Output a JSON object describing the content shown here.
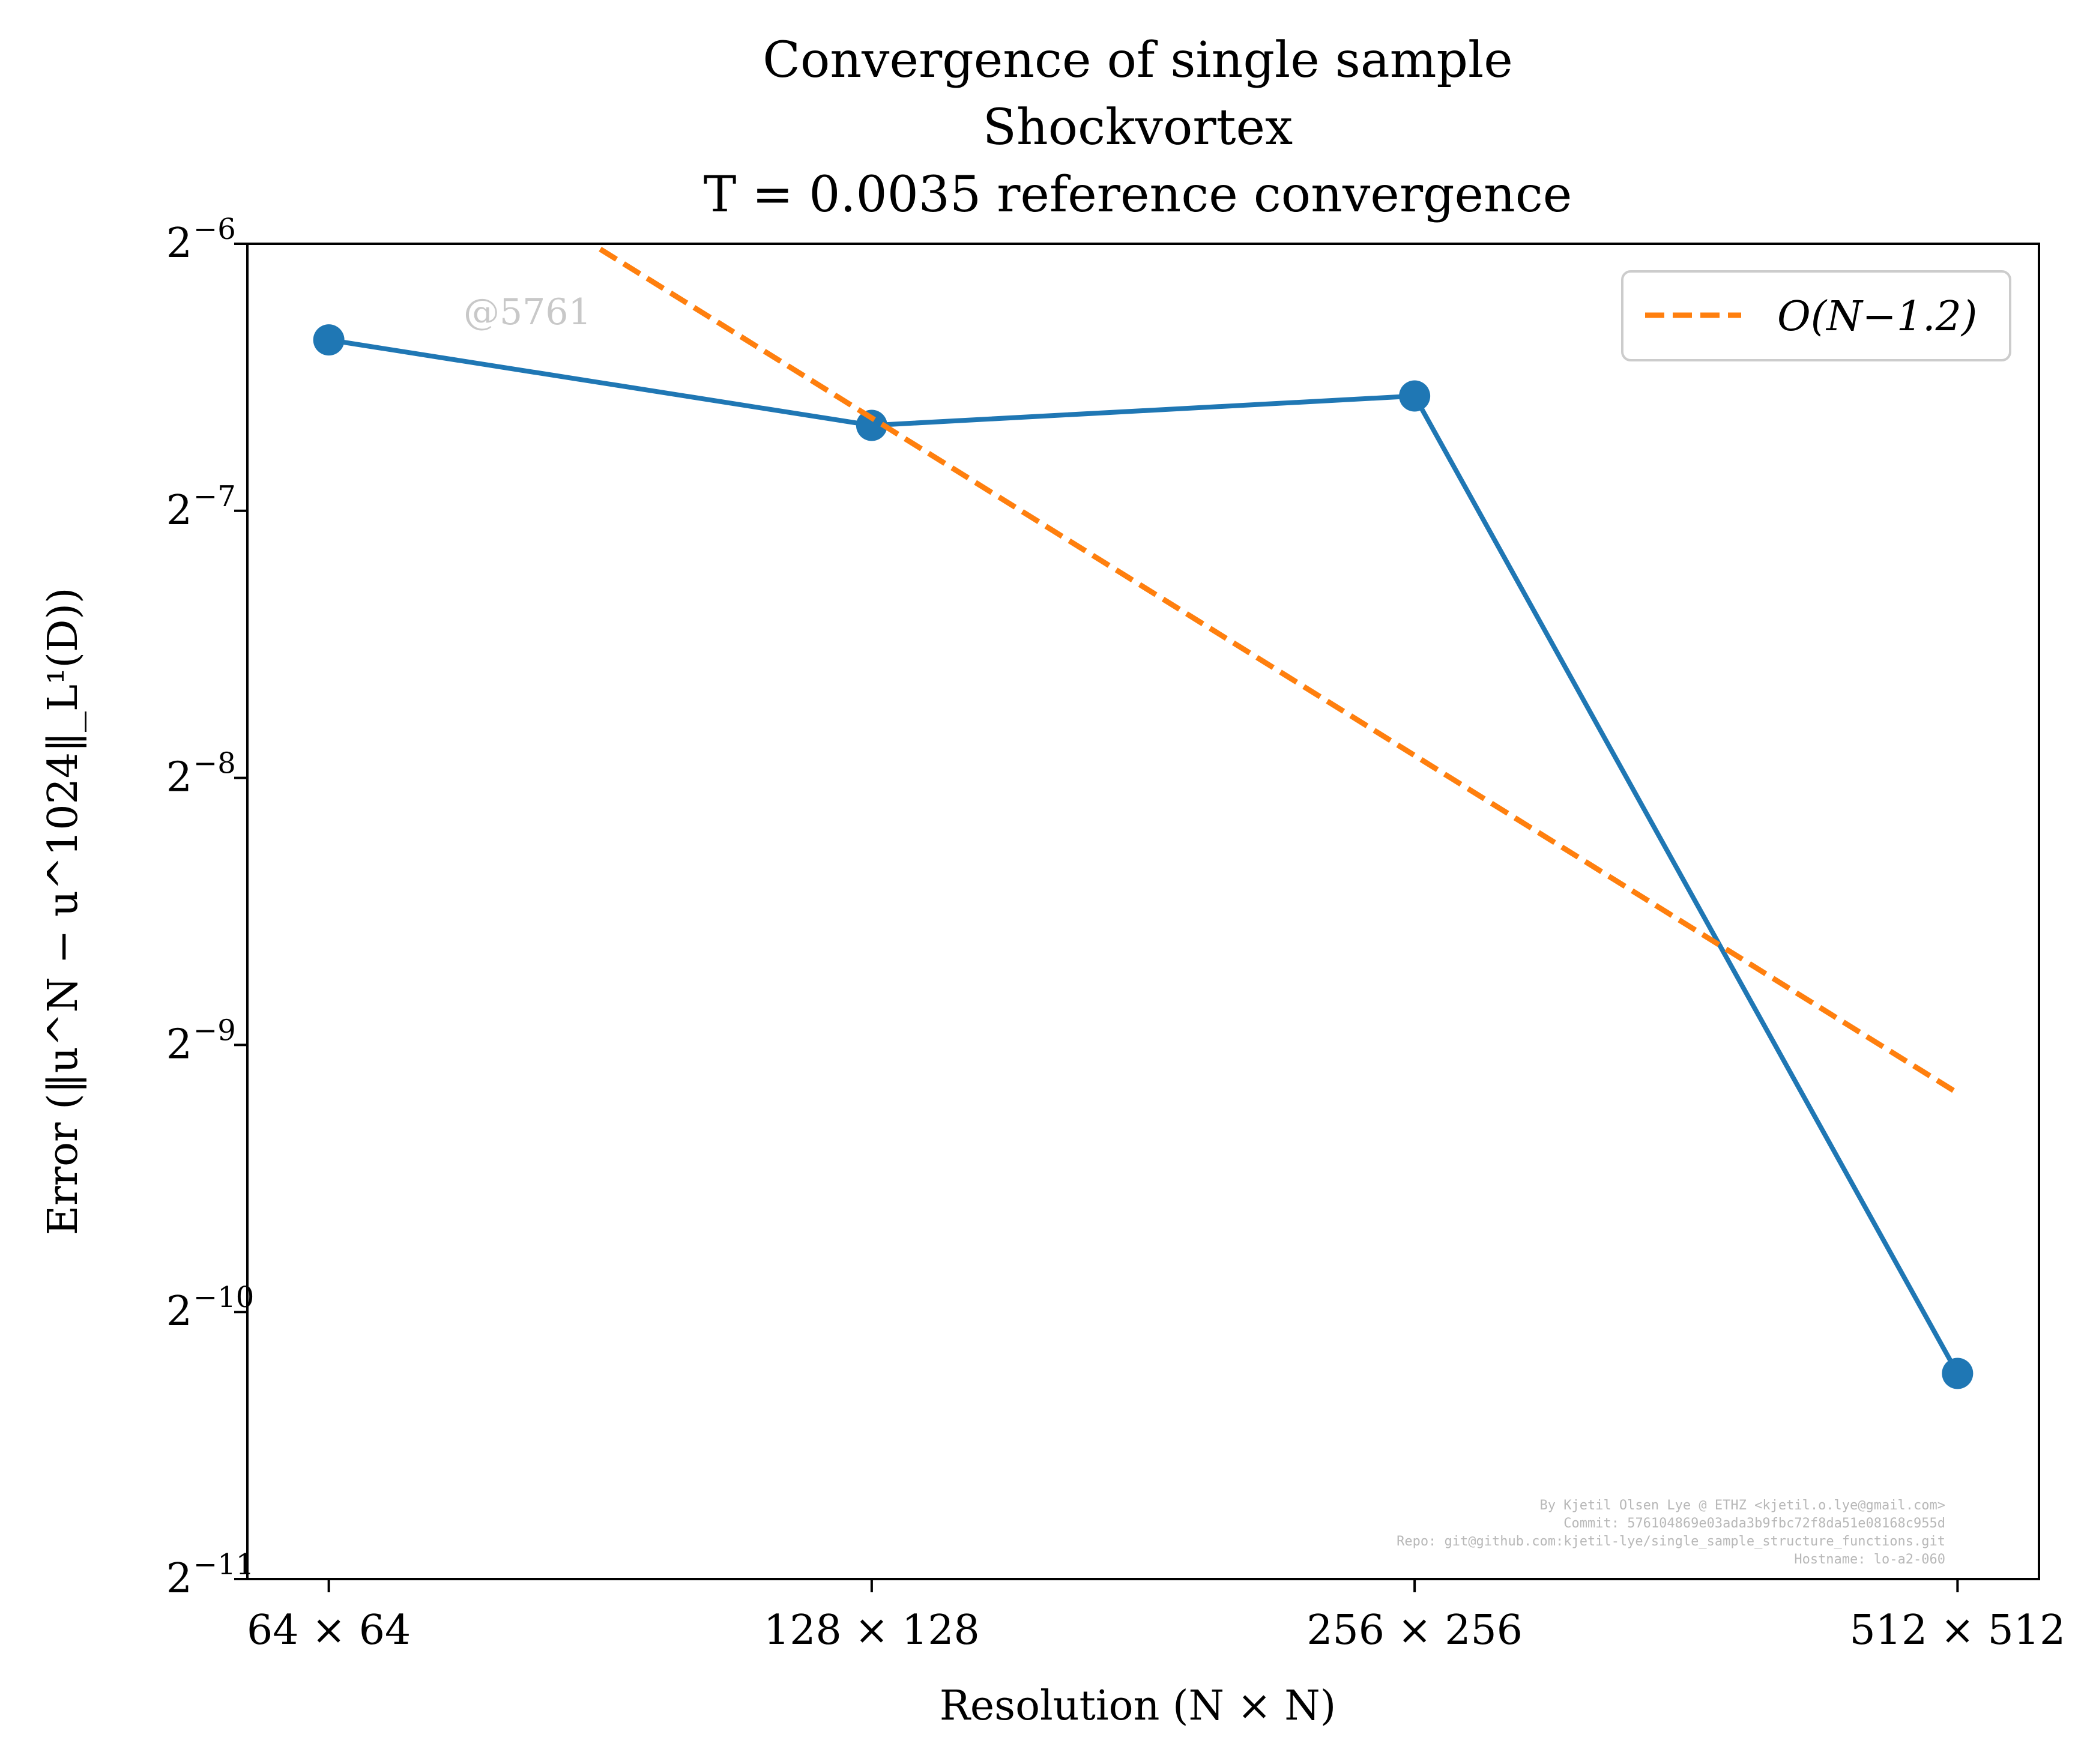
{
  "chart_data": {
    "type": "line",
    "title": [
      "Convergence of single sample",
      "Shockvortex",
      "T = 0.0035 reference convergence"
    ],
    "xlabel": "Resolution (N × N)",
    "ylabel": "Error (‖u^N − u^1024‖_L¹(D))",
    "x_scale": "log2",
    "y_scale": "log2",
    "x": [
      64,
      128,
      256,
      512
    ],
    "x_tick_labels": [
      "64 × 64",
      "128 × 128",
      "256 × 256",
      "512 × 512"
    ],
    "y_ticks": [
      {
        "base": "2",
        "exp": "−6",
        "value": -6
      },
      {
        "base": "2",
        "exp": "−7",
        "value": -7
      },
      {
        "base": "2",
        "exp": "−8",
        "value": -8
      },
      {
        "base": "2",
        "exp": "−9",
        "value": -9
      },
      {
        "base": "2",
        "exp": "−10",
        "value": -10
      },
      {
        "base": "2",
        "exp": "−11",
        "value": -11
      }
    ],
    "ylim_log2": [
      -11,
      -6
    ],
    "xlim_log2": [
      5.85,
      9.15
    ],
    "series": [
      {
        "name": "",
        "color": "#1f77b4",
        "style": "solid-with-markers",
        "x": [
          64,
          128,
          256,
          512
        ],
        "y_log2": [
          -6.36,
          -6.68,
          -6.57,
          -10.23
        ]
      },
      {
        "name": "O(N^−1.2)",
        "color": "#ff7f0e",
        "style": "dashed",
        "x": [
          90.5,
          512
        ],
        "y_log2": [
          -6.02,
          -9.18
        ]
      }
    ],
    "legend": {
      "placement": "upper-right",
      "label": "O(N−1.2)"
    },
    "grid": false
  },
  "watermark": "@5761",
  "credits": [
    "By Kjetil Olsen Lye @ ETHZ <kjetil.o.lye@gmail.com>",
    "Commit: 576104869e03ada3b9fbc72f8da51e08168c955d",
    "Repo: git@github.com:kjetil-lye/single_sample_structure_functions.git",
    "Hostname: lo-a2-060"
  ]
}
